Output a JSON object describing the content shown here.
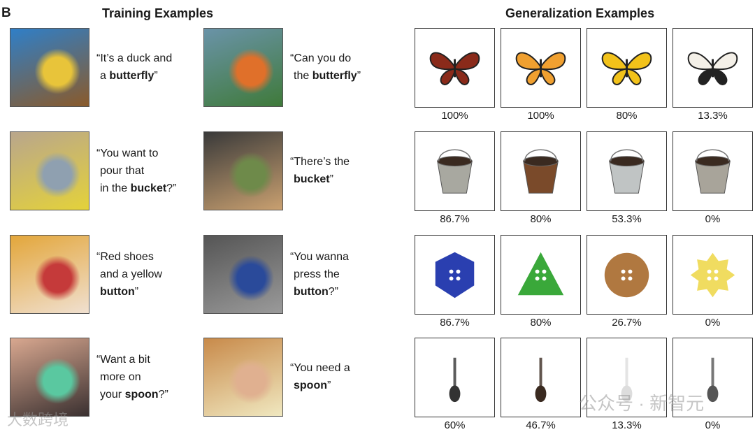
{
  "panel_label": "B",
  "training": {
    "title": "Training Examples",
    "rows": [
      {
        "word": "butterfly",
        "examples": [
          {
            "lines": [
              "“It’s a duck and"
            ],
            "prefix": "a ",
            "bold": "butterfly",
            "suffix": "”",
            "colors": [
              "#2f7fc8",
              "#e8c43a",
              "#8a5a2a"
            ]
          },
          {
            "lines": [
              "“Can you do"
            ],
            "prefix": "the ",
            "bold": "butterfly",
            "suffix": "”",
            "colors": [
              "#6a93a8",
              "#e0702a",
              "#3f7a3a"
            ]
          }
        ]
      },
      {
        "word": "bucket",
        "examples": [
          {
            "lines": [
              "“You want to",
              "pour that"
            ],
            "prefix": "in the ",
            "bold": "bucket",
            "suffix": "?”",
            "colors": [
              "#b9a68c",
              "#8fa0b0",
              "#e4d23a"
            ]
          },
          {
            "lines": [
              "“There’s the"
            ],
            "prefix": "",
            "bold": "bucket",
            "suffix": "”",
            "colors": [
              "#3a3a3a",
              "#6e8a4a",
              "#c9a070"
            ]
          }
        ]
      },
      {
        "word": "button",
        "examples": [
          {
            "lines": [
              "“Red shoes",
              "and a yellow"
            ],
            "prefix": "",
            "bold": "button",
            "suffix": "”",
            "colors": [
              "#e3a63a",
              "#c53a3a",
              "#f0e0d0"
            ]
          },
          {
            "lines": [
              "“You wanna",
              "press the"
            ],
            "prefix": "",
            "bold": "button",
            "suffix": "?”",
            "colors": [
              "#555555",
              "#2a4a9a",
              "#9a9a9a"
            ]
          }
        ]
      },
      {
        "word": "spoon",
        "examples": [
          {
            "lines": [
              "“Want a bit",
              "more on"
            ],
            "prefix": "your ",
            "bold": "spoon",
            "suffix": "?”",
            "colors": [
              "#d9a890",
              "#5ac8a0",
              "#3a3030"
            ]
          },
          {
            "lines": [
              "“You need a"
            ],
            "prefix": "",
            "bold": "spoon",
            "suffix": "”",
            "colors": [
              "#c88a4a",
              "#e0b090",
              "#f0e8c0"
            ]
          }
        ]
      }
    ]
  },
  "generalization": {
    "title": "Generalization Examples",
    "rows": [
      {
        "object": "butterfly",
        "items": [
          {
            "value": "100%",
            "color": "#8a2a1a"
          },
          {
            "value": "100%",
            "color": "#f0a030"
          },
          {
            "value": "80%",
            "color": "#f2c21a"
          },
          {
            "value": "13.3%",
            "color": "#222222"
          }
        ]
      },
      {
        "object": "bucket",
        "items": [
          {
            "value": "86.7%",
            "color": "#a8a8a0"
          },
          {
            "value": "80%",
            "color": "#7a4a2a"
          },
          {
            "value": "53.3%",
            "color": "#c0c4c4"
          },
          {
            "value": "0%",
            "color": "#a8a49a"
          }
        ]
      },
      {
        "object": "button",
        "items": [
          {
            "value": "86.7%",
            "color": "#2a3fb0"
          },
          {
            "value": "80%",
            "color": "#3aa83a"
          },
          {
            "value": "26.7%",
            "color": "#b07840"
          },
          {
            "value": "0%",
            "color": "#f0dc60"
          }
        ]
      },
      {
        "object": "spoon",
        "items": [
          {
            "value": "60%",
            "color": "#333333"
          },
          {
            "value": "46.7%",
            "color": "#3a2a20"
          },
          {
            "value": "13.3%",
            "color": "#dddddd"
          },
          {
            "value": "0%",
            "color": "#555555"
          }
        ]
      }
    ]
  },
  "watermarks": {
    "left": "大数跨境",
    "right": "公众号 · 新智元"
  }
}
